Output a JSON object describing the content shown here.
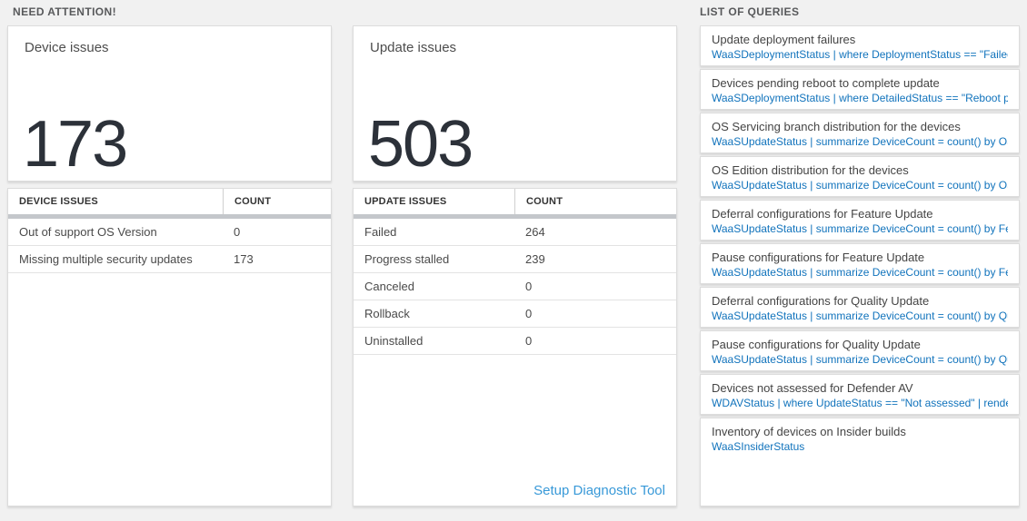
{
  "sections": {
    "need_attention": {
      "title": "NEED ATTENTION!"
    },
    "queries": {
      "title": "LIST OF QUERIES"
    }
  },
  "device_summary": {
    "label": "Device issues",
    "value": "173"
  },
  "update_summary": {
    "label": "Update issues",
    "value": "503"
  },
  "device_table": {
    "headers": [
      "DEVICE ISSUES",
      "COUNT"
    ],
    "rows": [
      {
        "issue": "Out of support OS Version",
        "count": "0"
      },
      {
        "issue": "Missing multiple security updates",
        "count": "173"
      }
    ]
  },
  "update_table": {
    "headers": [
      "UPDATE ISSUES",
      "COUNT"
    ],
    "rows": [
      {
        "issue": "Failed",
        "count": "264"
      },
      {
        "issue": "Progress stalled",
        "count": "239"
      },
      {
        "issue": "Canceled",
        "count": "0"
      },
      {
        "issue": "Rollback",
        "count": "0"
      },
      {
        "issue": "Uninstalled",
        "count": "0"
      }
    ],
    "link_label": "Setup Diagnostic Tool"
  },
  "query_list": {
    "items": [
      {
        "title": "Update deployment failures",
        "query": "WaaSDeploymentStatus | where DeploymentStatus == \"Failed\" |..."
      },
      {
        "title": "Devices pending reboot to complete update",
        "query": "WaaSDeploymentStatus | where DetailedStatus == \"Reboot pend..."
      },
      {
        "title": "OS Servicing branch distribution for the devices",
        "query": "WaaSUpdateStatus | summarize DeviceCount = count() by OSSer..."
      },
      {
        "title": "OS Edition distribution for the devices",
        "query": "WaaSUpdateStatus | summarize DeviceCount = count() by OSEdit..."
      },
      {
        "title": "Deferral configurations for Feature Update",
        "query": "WaaSUpdateStatus | summarize DeviceCount = count() by Featur..."
      },
      {
        "title": "Pause configurations for Feature Update",
        "query": "WaaSUpdateStatus | summarize DeviceCount = count() by Featur..."
      },
      {
        "title": "Deferral configurations for Quality Update",
        "query": "WaaSUpdateStatus | summarize DeviceCount = count() by Qualit..."
      },
      {
        "title": "Pause configurations for Quality Update",
        "query": "WaaSUpdateStatus | summarize DeviceCount = count() by Qualit..."
      },
      {
        "title": "Devices not assessed for Defender AV",
        "query": "WDAVStatus | where UpdateStatus == \"Not assessed\" | render ta..."
      },
      {
        "title": "Inventory of devices on Insider builds",
        "query": "WaaSInsiderStatus"
      }
    ]
  },
  "colors": {
    "query_blue": "#1173bc",
    "link_blue": "#3899d8",
    "big_number": "#2c3139",
    "page_background": "#f1f1f1"
  }
}
